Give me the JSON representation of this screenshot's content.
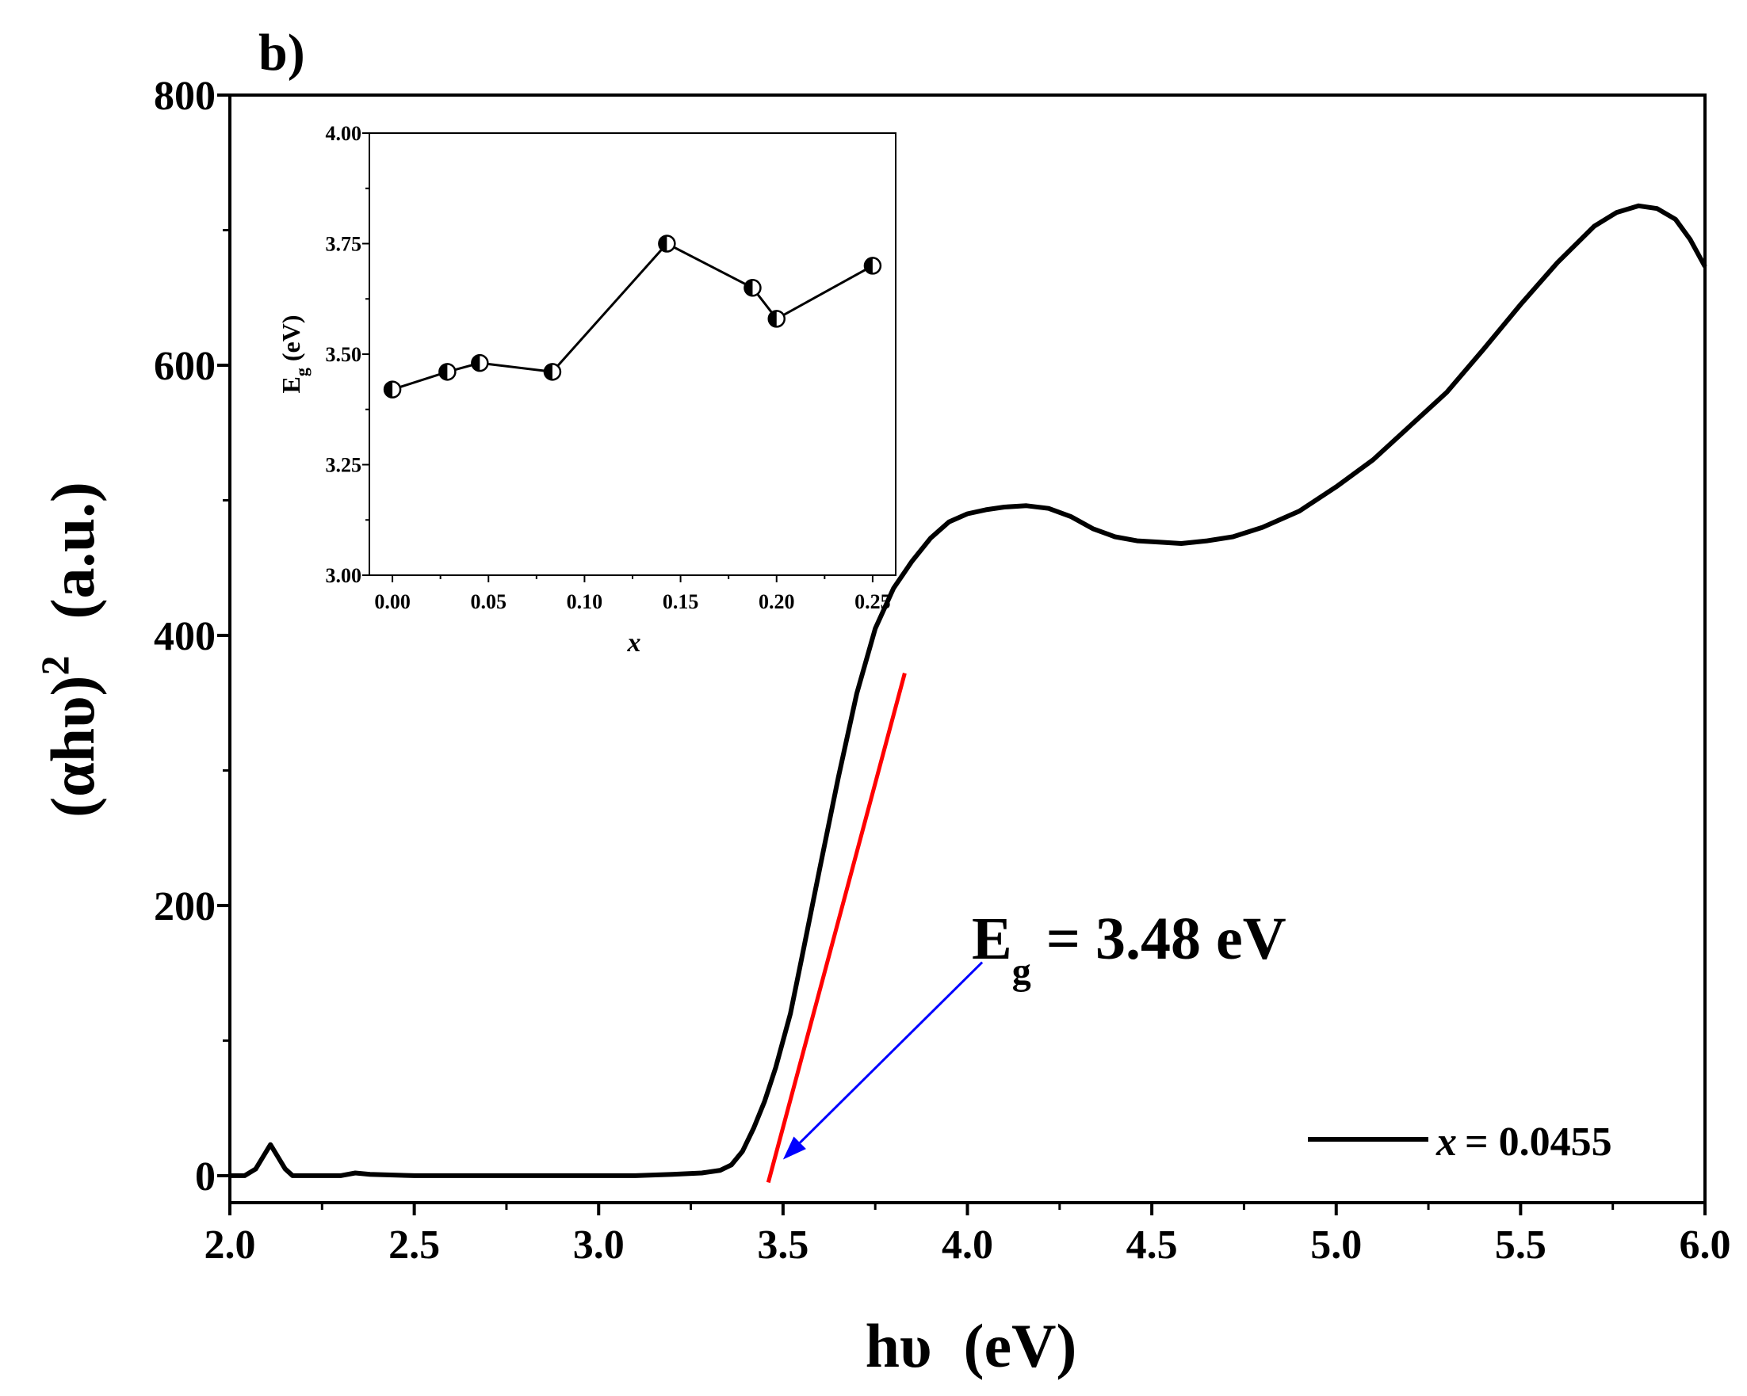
{
  "panel_label": "b)",
  "chart_data": [
    {
      "type": "line",
      "name": "main",
      "title": "",
      "xlabel_main": "hυ",
      "xlabel_unit": "(eV)",
      "ylabel_main": "(αhυ)",
      "ylabel_sup": "2",
      "ylabel_unit": "(a.u.)",
      "xlim": [
        2.0,
        6.0
      ],
      "ylim": [
        -20,
        800
      ],
      "x_ticks": [
        2.0,
        2.5,
        3.0,
        3.5,
        4.0,
        4.5,
        5.0,
        5.5,
        6.0
      ],
      "x_tick_labels": [
        "2.0",
        "2.5",
        "3.0",
        "3.5",
        "4.0",
        "4.5",
        "5.0",
        "5.5",
        "6.0"
      ],
      "y_ticks": [
        0,
        200,
        400,
        600,
        800
      ],
      "y_tick_labels": [
        "0",
        "200",
        "400",
        "600",
        "800"
      ],
      "y_minor_ticks": [
        100,
        300,
        500,
        700
      ],
      "grid": false,
      "legend_position": "bottom-right",
      "series": [
        {
          "name": "x = 0.0455",
          "legend_var": "x",
          "legend_value": "= 0.0455",
          "color": "#000000",
          "x": [
            2.0,
            2.04,
            2.07,
            2.09,
            2.11,
            2.13,
            2.15,
            2.17,
            2.2,
            2.3,
            2.34,
            2.38,
            2.5,
            2.7,
            2.9,
            3.1,
            3.2,
            3.28,
            3.33,
            3.36,
            3.39,
            3.42,
            3.45,
            3.48,
            3.52,
            3.55,
            3.6,
            3.65,
            3.7,
            3.75,
            3.8,
            3.85,
            3.9,
            3.95,
            4.0,
            4.05,
            4.1,
            4.16,
            4.22,
            4.28,
            4.34,
            4.4,
            4.46,
            4.52,
            4.58,
            4.65,
            4.72,
            4.8,
            4.9,
            5.0,
            5.1,
            5.2,
            5.3,
            5.4,
            5.5,
            5.6,
            5.7,
            5.76,
            5.82,
            5.87,
            5.92,
            5.96,
            6.0
          ],
          "y": [
            0,
            0,
            5,
            14,
            23,
            14,
            5,
            0,
            0,
            0,
            2,
            1,
            0,
            0,
            0,
            0,
            1,
            2,
            4,
            8,
            18,
            35,
            55,
            80,
            120,
            160,
            228,
            295,
            357,
            405,
            435,
            455,
            472,
            484,
            490,
            493,
            495,
            496,
            494,
            488,
            479,
            473,
            470,
            469,
            468,
            470,
            473,
            480,
            492,
            510,
            530,
            555,
            580,
            612,
            645,
            676,
            703,
            713,
            718,
            716,
            708,
            693,
            673
          ],
          "x_label_points": []
        }
      ],
      "fit_line": {
        "color": "#ff0000",
        "x": [
          3.46,
          3.83
        ],
        "y": [
          -5,
          372
        ]
      },
      "annotation": {
        "text_main": "E",
        "text_sub": "g",
        "text_rest": " = 3.48 eV",
        "arrow_color": "#0000ff",
        "arrow_tail": [
          4.04,
          158
        ],
        "arrow_head": [
          3.5,
          12
        ]
      }
    },
    {
      "type": "line",
      "name": "inset",
      "xlabel": "x",
      "ylabel_main": "E",
      "ylabel_sub": "g",
      "ylabel_unit": " (eV)",
      "xlim": [
        -0.012,
        0.262
      ],
      "ylim": [
        3.0,
        4.0
      ],
      "x_ticks": [
        0.0,
        0.05,
        0.1,
        0.15,
        0.2,
        0.25
      ],
      "x_tick_labels": [
        "0.00",
        "0.05",
        "0.10",
        "0.15",
        "0.20",
        "0.25"
      ],
      "y_ticks": [
        3.0,
        3.25,
        3.5,
        3.75,
        4.0
      ],
      "y_tick_labels": [
        "3.00",
        "3.25",
        "3.50",
        "3.75",
        "4.00"
      ],
      "grid": false,
      "series": [
        {
          "name": "Eg vs x",
          "color": "#000000",
          "x": [
            0.0,
            0.0286,
            0.0455,
            0.0833,
            0.1429,
            0.1875,
            0.2,
            0.25
          ],
          "y": [
            3.42,
            3.46,
            3.48,
            3.46,
            3.75,
            3.65,
            3.58,
            3.7
          ]
        }
      ]
    }
  ]
}
